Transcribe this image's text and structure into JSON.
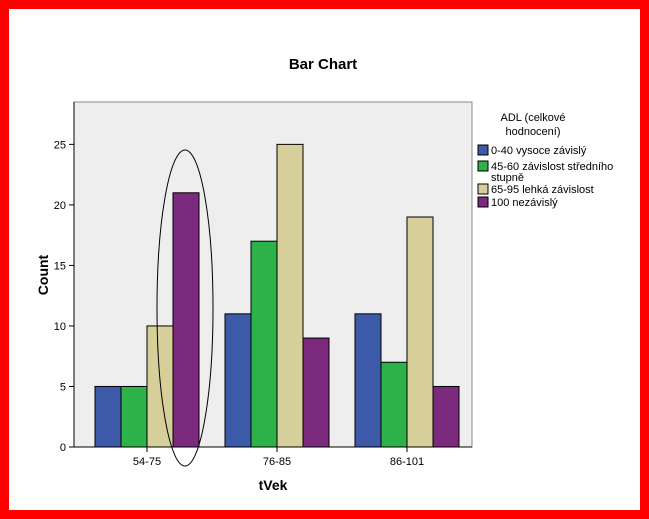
{
  "chart_data": {
    "type": "bar",
    "title": "Bar Chart",
    "xlabel": "tVek",
    "ylabel": "Count",
    "categories": [
      "54-75",
      "76-85",
      "86-101"
    ],
    "yticks": [
      0,
      5,
      10,
      15,
      20,
      25
    ],
    "ylim": [
      0,
      28.5
    ],
    "grid": false,
    "legend": {
      "title_lines": [
        "ADL (celkové",
        "hodnocení)"
      ],
      "placement": "right"
    },
    "series": [
      {
        "name": "0-40 vysoce závislý",
        "name_lines": [
          "0-40 vysoce závislý"
        ],
        "color": "#3d5aa9",
        "values": [
          5,
          11,
          11
        ]
      },
      {
        "name": "45-60 závislost středního stupně",
        "name_lines": [
          "45-60 závislost středního",
          "stupně"
        ],
        "color": "#2db24a",
        "values": [
          5,
          17,
          7
        ]
      },
      {
        "name": "65-95 lehká závislost",
        "name_lines": [
          "65-95 lehká závislost"
        ],
        "color": "#d6cf9a",
        "values": [
          10,
          25,
          19
        ]
      },
      {
        "name": "100 nezávislý",
        "name_lines": [
          "100 nezávislý"
        ],
        "color": "#7b2a7e",
        "values": [
          21,
          9,
          5
        ]
      }
    ],
    "plot_background": "#eeeeee",
    "annotation": "ellipse around 54-75 / 100 nezávislý bar"
  },
  "frame_color": "#ff0000"
}
